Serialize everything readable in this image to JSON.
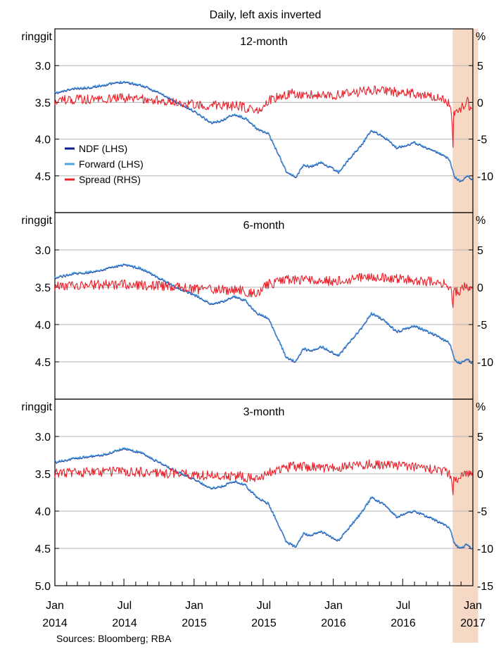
{
  "chart_data": {
    "type": "line",
    "title": "Daily, left axis inverted",
    "source": "Sources: Bloomberg; RBA",
    "left_unit": "ringgit",
    "right_unit": "%",
    "x_axis": {
      "range": [
        "2014-01-01",
        "2017-01-01"
      ],
      "ticks": [
        {
          "month": "Jan",
          "year": "2014"
        },
        {
          "month": "Jul",
          "year": "2014"
        },
        {
          "month": "Jan",
          "year": "2015"
        },
        {
          "month": "Jul",
          "year": "2015"
        },
        {
          "month": "Jan",
          "year": "2016"
        },
        {
          "month": "Jul",
          "year": "2016"
        },
        {
          "month": "Jan",
          "year": "2017"
        }
      ]
    },
    "left_axis": {
      "inverted": true,
      "ylim": [
        2.5,
        5.0
      ],
      "ticks": [
        "3.0",
        "3.5",
        "4.0",
        "4.5"
      ],
      "bottom_tick": "5.0"
    },
    "right_axis": {
      "ylim": [
        -15,
        10
      ],
      "ticks": [
        "5",
        "0",
        "-5",
        "-10"
      ],
      "bottom_tick": "-15"
    },
    "shaded_period": {
      "start": "2016-11-09",
      "end": "2017-01-15",
      "color": "#f5d9c4"
    },
    "legend": [
      {
        "name": "NDF (LHS)",
        "color": "#0b1f8c"
      },
      {
        "name": "Forward (LHS)",
        "color": "#4fa3e0"
      },
      {
        "name": "Spread (RHS)",
        "color": "#e8202a"
      }
    ],
    "panels": [
      {
        "name": "12-month",
        "lhs": [
          [
            "2014-01-01",
            3.38
          ],
          [
            "2014-02-15",
            3.32
          ],
          [
            "2014-04-01",
            3.3
          ],
          [
            "2014-05-15",
            3.26
          ],
          [
            "2014-07-01",
            3.22
          ],
          [
            "2014-08-15",
            3.27
          ],
          [
            "2014-10-01",
            3.37
          ],
          [
            "2014-11-15",
            3.5
          ],
          [
            "2015-01-01",
            3.62
          ],
          [
            "2015-02-15",
            3.78
          ],
          [
            "2015-03-15",
            3.75
          ],
          [
            "2015-04-15",
            3.66
          ],
          [
            "2015-05-15",
            3.72
          ],
          [
            "2015-06-15",
            3.86
          ],
          [
            "2015-07-15",
            3.93
          ],
          [
            "2015-08-10",
            4.2
          ],
          [
            "2015-09-01",
            4.45
          ],
          [
            "2015-09-25",
            4.52
          ],
          [
            "2015-10-15",
            4.35
          ],
          [
            "2015-11-01",
            4.38
          ],
          [
            "2015-12-01",
            4.32
          ],
          [
            "2016-01-15",
            4.45
          ],
          [
            "2016-02-15",
            4.25
          ],
          [
            "2016-03-15",
            4.08
          ],
          [
            "2016-04-10",
            3.88
          ],
          [
            "2016-05-15",
            3.98
          ],
          [
            "2016-06-15",
            4.12
          ],
          [
            "2016-08-01",
            4.05
          ],
          [
            "2016-09-15",
            4.15
          ],
          [
            "2016-10-15",
            4.22
          ],
          [
            "2016-11-01",
            4.28
          ],
          [
            "2016-11-15",
            4.52
          ],
          [
            "2016-12-01",
            4.58
          ],
          [
            "2016-12-15",
            4.5
          ],
          [
            "2016-12-31",
            4.55
          ]
        ],
        "spread": [
          [
            "2014-01-01",
            0.3
          ],
          [
            "2014-07-01",
            0.6
          ],
          [
            "2014-12-01",
            0.0
          ],
          [
            "2015-01-01",
            -0.3
          ],
          [
            "2015-05-01",
            -0.5
          ],
          [
            "2015-06-15",
            -1.2
          ],
          [
            "2015-07-15",
            0.3
          ],
          [
            "2015-09-15",
            1.2
          ],
          [
            "2016-01-01",
            0.9
          ],
          [
            "2016-04-15",
            1.7
          ],
          [
            "2016-08-01",
            1.2
          ],
          [
            "2016-10-15",
            0.6
          ],
          [
            "2016-11-05",
            -0.3
          ],
          [
            "2016-11-10",
            -5.5
          ],
          [
            "2016-11-12",
            -1.5
          ],
          [
            "2016-12-01",
            -1.0
          ],
          [
            "2016-12-15",
            0.4
          ],
          [
            "2016-12-31",
            -1.4
          ]
        ]
      },
      {
        "name": "6-month",
        "lhs": [
          [
            "2014-01-01",
            3.38
          ],
          [
            "2014-02-15",
            3.32
          ],
          [
            "2014-04-01",
            3.3
          ],
          [
            "2014-05-15",
            3.26
          ],
          [
            "2014-07-01",
            3.2
          ],
          [
            "2014-08-15",
            3.25
          ],
          [
            "2014-10-01",
            3.38
          ],
          [
            "2014-11-15",
            3.5
          ],
          [
            "2015-01-01",
            3.6
          ],
          [
            "2015-02-15",
            3.73
          ],
          [
            "2015-03-15",
            3.7
          ],
          [
            "2015-04-15",
            3.62
          ],
          [
            "2015-05-15",
            3.68
          ],
          [
            "2015-06-15",
            3.85
          ],
          [
            "2015-07-15",
            3.92
          ],
          [
            "2015-08-10",
            4.2
          ],
          [
            "2015-09-01",
            4.45
          ],
          [
            "2015-09-25",
            4.5
          ],
          [
            "2015-10-15",
            4.32
          ],
          [
            "2015-11-01",
            4.36
          ],
          [
            "2015-12-01",
            4.3
          ],
          [
            "2016-01-15",
            4.42
          ],
          [
            "2016-02-15",
            4.22
          ],
          [
            "2016-03-15",
            4.05
          ],
          [
            "2016-04-10",
            3.85
          ],
          [
            "2016-05-15",
            3.95
          ],
          [
            "2016-06-15",
            4.1
          ],
          [
            "2016-08-01",
            4.02
          ],
          [
            "2016-09-15",
            4.12
          ],
          [
            "2016-10-15",
            4.2
          ],
          [
            "2016-11-01",
            4.25
          ],
          [
            "2016-11-15",
            4.48
          ],
          [
            "2016-12-01",
            4.52
          ],
          [
            "2016-12-15",
            4.45
          ],
          [
            "2016-12-31",
            4.52
          ]
        ],
        "spread": [
          [
            "2014-01-01",
            0.2
          ],
          [
            "2014-07-01",
            0.4
          ],
          [
            "2014-12-01",
            0.0
          ],
          [
            "2015-01-01",
            -0.3
          ],
          [
            "2015-05-01",
            -0.4
          ],
          [
            "2015-06-15",
            -0.9
          ],
          [
            "2015-07-15",
            0.4
          ],
          [
            "2015-09-15",
            1.1
          ],
          [
            "2016-01-01",
            0.8
          ],
          [
            "2016-04-15",
            1.4
          ],
          [
            "2016-08-01",
            1.0
          ],
          [
            "2016-10-15",
            0.5
          ],
          [
            "2016-11-05",
            -0.3
          ],
          [
            "2016-11-10",
            -3.3
          ],
          [
            "2016-11-12",
            -0.8
          ],
          [
            "2016-12-01",
            -0.4
          ],
          [
            "2016-12-15",
            0.4
          ],
          [
            "2016-12-31",
            -0.6
          ]
        ]
      },
      {
        "name": "3-month",
        "lhs": [
          [
            "2014-01-01",
            3.35
          ],
          [
            "2014-02-15",
            3.3
          ],
          [
            "2014-04-01",
            3.27
          ],
          [
            "2014-05-15",
            3.24
          ],
          [
            "2014-07-01",
            3.16
          ],
          [
            "2014-08-15",
            3.22
          ],
          [
            "2014-10-01",
            3.35
          ],
          [
            "2014-11-15",
            3.47
          ],
          [
            "2015-01-01",
            3.57
          ],
          [
            "2015-02-15",
            3.7
          ],
          [
            "2015-03-15",
            3.67
          ],
          [
            "2015-04-15",
            3.6
          ],
          [
            "2015-05-15",
            3.65
          ],
          [
            "2015-06-15",
            3.82
          ],
          [
            "2015-07-15",
            3.9
          ],
          [
            "2015-08-10",
            4.18
          ],
          [
            "2015-09-01",
            4.42
          ],
          [
            "2015-09-25",
            4.48
          ],
          [
            "2015-10-15",
            4.3
          ],
          [
            "2015-11-01",
            4.33
          ],
          [
            "2015-12-01",
            4.28
          ],
          [
            "2016-01-15",
            4.4
          ],
          [
            "2016-02-15",
            4.2
          ],
          [
            "2016-03-15",
            4.02
          ],
          [
            "2016-04-10",
            3.82
          ],
          [
            "2016-05-15",
            3.92
          ],
          [
            "2016-06-15",
            4.08
          ],
          [
            "2016-08-01",
            4.0
          ],
          [
            "2016-09-15",
            4.1
          ],
          [
            "2016-10-15",
            4.18
          ],
          [
            "2016-11-01",
            4.22
          ],
          [
            "2016-11-15",
            4.45
          ],
          [
            "2016-12-01",
            4.5
          ],
          [
            "2016-12-15",
            4.45
          ],
          [
            "2016-12-31",
            4.5
          ]
        ],
        "spread": [
          [
            "2014-01-01",
            0.1
          ],
          [
            "2014-07-01",
            0.3
          ],
          [
            "2014-12-01",
            0.0
          ],
          [
            "2015-01-01",
            -0.2
          ],
          [
            "2015-05-01",
            -0.3
          ],
          [
            "2015-06-15",
            -0.8
          ],
          [
            "2015-07-15",
            0.3
          ],
          [
            "2015-09-15",
            1.0
          ],
          [
            "2016-01-01",
            0.7
          ],
          [
            "2016-04-15",
            1.3
          ],
          [
            "2016-08-01",
            0.9
          ],
          [
            "2016-10-15",
            0.4
          ],
          [
            "2016-11-05",
            -0.2
          ],
          [
            "2016-11-10",
            -3.3
          ],
          [
            "2016-11-12",
            -0.8
          ],
          [
            "2016-12-01",
            -0.4
          ],
          [
            "2016-12-15",
            0.3
          ],
          [
            "2016-12-31",
            -0.5
          ]
        ]
      }
    ]
  }
}
